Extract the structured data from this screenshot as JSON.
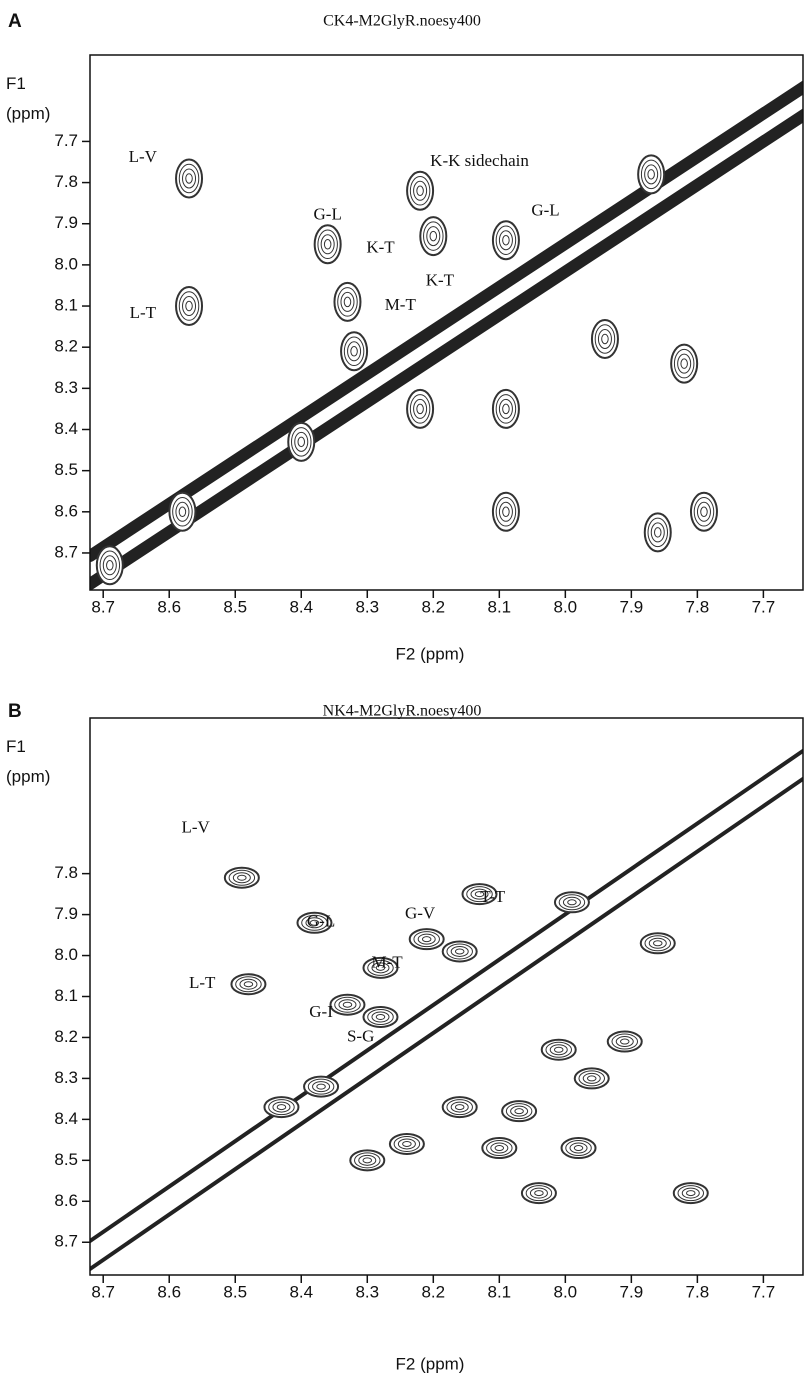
{
  "chart_data": [
    {
      "type": "scatter",
      "panel": "A",
      "title": "CK4-M2GlyR.noesy400",
      "xlabel": "F2 (ppm)",
      "ylabel": "F1 (ppm)",
      "xlim": [
        8.72,
        7.64
      ],
      "ylim": [
        8.79,
        7.49
      ],
      "xticks": [
        8.7,
        8.6,
        8.5,
        8.4,
        8.3,
        8.2,
        8.1,
        {
          "value": 8,
          "label": "8.0"
        },
        7.9,
        7.8,
        7.7
      ],
      "yticks": [
        7.7,
        7.8,
        7.9,
        {
          "value": 8,
          "label": "8.0"
        },
        8.1,
        8.2,
        8.3,
        8.4,
        8.5,
        8.6,
        8.7
      ],
      "color": "#333333",
      "x": [
        8.57,
        8.57,
        8.36,
        8.22,
        8.2,
        8.33,
        8.09,
        8.09,
        8.09,
        7.79,
        7.94,
        7.87,
        7.82,
        7.86,
        8.69,
        8.4,
        8.58,
        8.32,
        8.22
      ],
      "values": [
        7.79,
        8.1,
        7.95,
        7.82,
        7.93,
        8.09,
        7.94,
        8.35,
        8.6,
        8.6,
        8.18,
        7.78,
        8.24,
        8.65,
        8.73,
        8.43,
        8.6,
        8.21,
        8.35
      ],
      "annotations": [
        {
          "text": "L-V",
          "x": 8.64,
          "y": 7.74
        },
        {
          "text": "L-T",
          "x": 8.64,
          "y": 8.12
        },
        {
          "text": "G-L",
          "x": 8.36,
          "y": 7.88
        },
        {
          "text": "K-K sidechain",
          "x": 8.13,
          "y": 7.75
        },
        {
          "text": "K-T",
          "x": 8.28,
          "y": 7.96
        },
        {
          "text": "K-T",
          "x": 8.19,
          "y": 8.04
        },
        {
          "text": "M-T",
          "x": 8.25,
          "y": 8.1
        },
        {
          "text": "G-L",
          "x": 8.03,
          "y": 7.87
        }
      ]
    },
    {
      "type": "scatter",
      "panel": "B",
      "title": "NK4-M2GlyR.noesy400",
      "xlabel": "F2 (ppm)",
      "ylabel": "F1 (ppm)",
      "xlim": [
        8.72,
        7.64
      ],
      "ylim": [
        8.78,
        7.42
      ],
      "xticks": [
        8.7,
        8.6,
        8.5,
        8.4,
        8.3,
        8.2,
        8.1,
        {
          "value": 8,
          "label": "8.0"
        },
        7.9,
        7.8,
        7.7
      ],
      "yticks": [
        7.8,
        7.9,
        {
          "value": 8,
          "label": "8.0"
        },
        8.1,
        8.2,
        8.3,
        8.4,
        8.5,
        8.6,
        8.7
      ],
      "color": "#333333",
      "x": [
        8.49,
        8.38,
        8.48,
        8.33,
        8.21,
        8.13,
        8.28,
        8.28,
        8.16,
        8.01,
        7.91,
        7.96,
        8.16,
        8.07,
        8.1,
        7.98,
        8.04,
        7.81,
        8.43,
        8.37,
        8.3,
        8.24,
        7.99,
        7.86
      ],
      "values": [
        7.81,
        7.92,
        8.07,
        8.12,
        7.96,
        7.85,
        8.03,
        8.15,
        7.99,
        8.23,
        8.21,
        8.3,
        8.37,
        8.38,
        8.47,
        8.47,
        8.58,
        8.58,
        8.37,
        8.32,
        8.5,
        8.46,
        7.87,
        7.97
      ],
      "annotations": [
        {
          "text": "L-V",
          "x": 8.56,
          "y": 7.69
        },
        {
          "text": "G-L",
          "x": 8.37,
          "y": 7.92
        },
        {
          "text": "L-T",
          "x": 8.55,
          "y": 8.07
        },
        {
          "text": "G-I",
          "x": 8.37,
          "y": 8.14
        },
        {
          "text": "S-G",
          "x": 8.31,
          "y": 8.2
        },
        {
          "text": "M-T",
          "x": 8.27,
          "y": 8.02
        },
        {
          "text": "G-V",
          "x": 8.22,
          "y": 7.9
        },
        {
          "text": "T-T",
          "x": 8.11,
          "y": 7.86
        }
      ]
    }
  ]
}
